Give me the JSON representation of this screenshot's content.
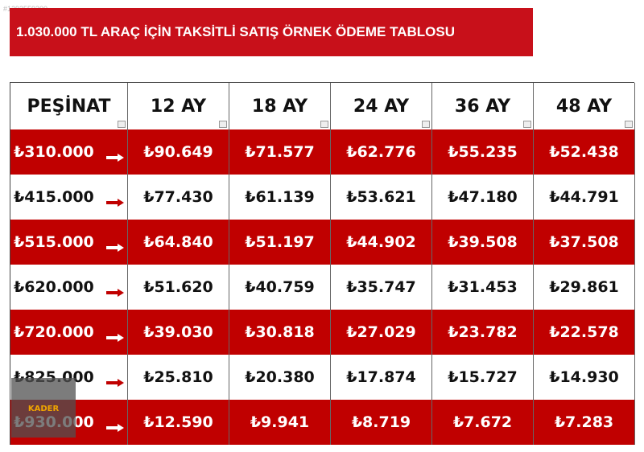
{
  "watermark": "#1293559300",
  "title": "1.030.000 TL ARAÇ İÇİN TAKSİTLİ SATIŞ ÖRNEK ÖDEME TABLOSU",
  "table": {
    "header": [
      "PEŞİNAT",
      "12 AY",
      "18 AY",
      "24 AY",
      "36 AY",
      "48 AY"
    ],
    "rows": [
      [
        "₺310.000",
        "₺90.649",
        "₺71.577",
        "₺62.776",
        "₺55.235",
        "₺52.438"
      ],
      [
        "₺415.000",
        "₺77.430",
        "₺61.139",
        "₺53.621",
        "₺47.180",
        "₺44.791"
      ],
      [
        "₺515.000",
        "₺64.840",
        "₺51.197",
        "₺44.902",
        "₺39.508",
        "₺37.508"
      ],
      [
        "₺620.000",
        "₺51.620",
        "₺40.759",
        "₺35.747",
        "₺31.453",
        "₺29.861"
      ],
      [
        "₺720.000",
        "₺39.030",
        "₺30.818",
        "₺27.029",
        "₺23.782",
        "₺22.578"
      ],
      [
        "₺825.000",
        "₺25.810",
        "₺20.380",
        "₺17.874",
        "₺15.727",
        "₺14.930"
      ],
      [
        "₺930.000",
        "₺12.590",
        "₺9.941",
        "₺8.719",
        "₺7.672",
        "₺7.283"
      ]
    ]
  },
  "logo": "KADER"
}
